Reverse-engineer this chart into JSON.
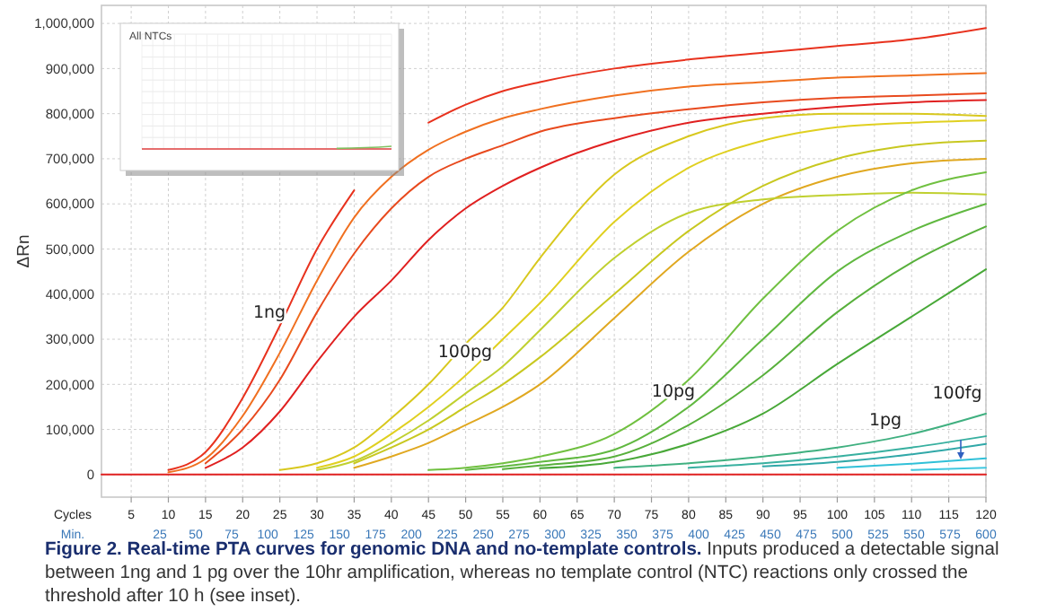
{
  "chart_data": {
    "type": "line",
    "title": "Figure 2. Real-time PTA curves for genomic DNA and no-template controls.",
    "ylabel": "ΔRn",
    "xlabel": "Cycles",
    "x2label": "Min.",
    "annotations": [
      "Inputs produced a detectable signal between 1ng and 1 pg over the 10hr amplification, whereas no template control (NTC) reactions only crossed the threshold after 10 h (see inset).",
      "1ng",
      "100pg",
      "10pg",
      "1pg",
      "100fg",
      "All NTCs"
    ],
    "xlim": [
      1,
      120
    ],
    "xticks": [
      5,
      10,
      15,
      20,
      25,
      30,
      35,
      40,
      45,
      50,
      55,
      60,
      65,
      70,
      75,
      80,
      85,
      90,
      95,
      100,
      105,
      110,
      115,
      120
    ],
    "x2lim": [
      5,
      600
    ],
    "x2ticks": [
      25,
      50,
      75,
      100,
      125,
      150,
      175,
      200,
      225,
      250,
      275,
      300,
      325,
      350,
      375,
      400,
      425,
      450,
      475,
      500,
      525,
      550,
      575,
      600
    ],
    "ylim": [
      -50000,
      1040000
    ],
    "yticks": [
      {
        "value": 0,
        "label": "0"
      },
      {
        "value": 100000,
        "label": "100,000"
      },
      {
        "value": 200000,
        "label": "200,000"
      },
      {
        "value": 300000,
        "label": "300,000"
      },
      {
        "value": 400000,
        "label": "400,000"
      },
      {
        "value": 500000,
        "label": "500,000"
      },
      {
        "value": 600000,
        "label": "600,000"
      },
      {
        "value": 700000,
        "label": "700,000"
      },
      {
        "value": 800000,
        "label": "800,000"
      },
      {
        "value": 900000,
        "label": "900,000"
      },
      {
        "value": 1000000,
        "label": "1,000,000"
      }
    ],
    "grid": true,
    "marker": "none",
    "line_style": "solid",
    "x": [
      1,
      5,
      10,
      15,
      20,
      25,
      30,
      35,
      40,
      45,
      50,
      55,
      60,
      70,
      80,
      90,
      100,
      110,
      120
    ],
    "series": [
      {
        "color": "#e8321e",
        "values": [
          null,
          null,
          10000,
          50000,
          170000,
          330000,
          500000,
          630000,
          null,
          780000,
          820000,
          850000,
          870000,
          900000,
          920000,
          935000,
          950000,
          965000,
          990000
        ]
      },
      {
        "color": "#f07020",
        "values": [
          null,
          null,
          5000,
          35000,
          130000,
          270000,
          430000,
          570000,
          660000,
          720000,
          760000,
          790000,
          810000,
          840000,
          860000,
          870000,
          880000,
          885000,
          890000
        ]
      },
      {
        "color": "#e84a1e",
        "values": [
          null,
          null,
          null,
          25000,
          100000,
          210000,
          360000,
          490000,
          590000,
          660000,
          700000,
          730000,
          760000,
          790000,
          810000,
          825000,
          835000,
          840000,
          845000
        ]
      },
      {
        "color": "#e02020",
        "values": [
          null,
          null,
          null,
          15000,
          60000,
          140000,
          250000,
          350000,
          430000,
          520000,
          590000,
          640000,
          680000,
          740000,
          780000,
          800000,
          815000,
          825000,
          830000
        ]
      },
      {
        "color": "#d8c81e",
        "values": [
          null,
          null,
          null,
          null,
          null,
          10000,
          25000,
          60000,
          125000,
          200000,
          290000,
          370000,
          480000,
          665000,
          750000,
          790000,
          800000,
          800000,
          795000
        ]
      },
      {
        "color": "#e0d020",
        "values": [
          null,
          null,
          null,
          null,
          null,
          null,
          15000,
          40000,
          90000,
          150000,
          220000,
          300000,
          380000,
          560000,
          680000,
          740000,
          770000,
          780000,
          785000
        ]
      },
      {
        "color": "#c8c820",
        "values": [
          null,
          null,
          null,
          null,
          null,
          null,
          null,
          25000,
          60000,
          100000,
          150000,
          200000,
          260000,
          400000,
          540000,
          640000,
          700000,
          730000,
          740000
        ]
      },
      {
        "color": "#e0a820",
        "values": [
          null,
          null,
          null,
          null,
          null,
          null,
          null,
          15000,
          40000,
          70000,
          110000,
          150000,
          200000,
          347000,
          494000,
          600000,
          660000,
          690000,
          700000
        ]
      },
      {
        "color": "#c0d030",
        "values": [
          null,
          null,
          null,
          null,
          null,
          null,
          10000,
          30000,
          70000,
          120000,
          180000,
          240000,
          320000,
          480000,
          580000,
          610000,
          620000,
          625000,
          621000
        ]
      },
      {
        "color": "#70c040",
        "values": [
          null,
          null,
          null,
          null,
          null,
          null,
          null,
          null,
          null,
          10000,
          15000,
          25000,
          40000,
          90000,
          210000,
          390000,
          540000,
          630000,
          670000
        ]
      },
      {
        "color": "#60b840",
        "values": [
          null,
          null,
          null,
          null,
          null,
          null,
          null,
          null,
          null,
          null,
          10000,
          18000,
          28000,
          55000,
          150000,
          300000,
          450000,
          540000,
          600000
        ]
      },
      {
        "color": "#58b03c",
        "values": [
          null,
          null,
          null,
          null,
          null,
          null,
          null,
          null,
          null,
          null,
          null,
          12000,
          20000,
          40000,
          110000,
          220000,
          360000,
          470000,
          550000
        ]
      },
      {
        "color": "#48a838",
        "values": [
          null,
          null,
          null,
          null,
          null,
          null,
          null,
          null,
          null,
          null,
          null,
          null,
          14000,
          28000,
          68000,
          135000,
          245000,
          350000,
          455000
        ]
      },
      {
        "color": "#40b080",
        "values": [
          null,
          null,
          null,
          null,
          null,
          null,
          null,
          null,
          null,
          null,
          null,
          null,
          null,
          15000,
          25000,
          40000,
          60000,
          90000,
          135000
        ]
      },
      {
        "color": "#38b0a0",
        "values": [
          null,
          null,
          null,
          null,
          null,
          null,
          null,
          null,
          null,
          null,
          null,
          null,
          null,
          null,
          15000,
          25000,
          40000,
          60000,
          85000
        ]
      },
      {
        "color": "#30a8a8",
        "values": [
          null,
          null,
          null,
          null,
          null,
          null,
          null,
          null,
          null,
          null,
          null,
          null,
          null,
          null,
          null,
          18000,
          28000,
          45000,
          68000
        ]
      },
      {
        "color": "#30c0d8",
        "values": [
          null,
          null,
          null,
          null,
          null,
          null,
          null,
          null,
          null,
          null,
          null,
          null,
          null,
          null,
          null,
          null,
          15000,
          24000,
          36000
        ]
      },
      {
        "color": "#40c8e0",
        "values": [
          null,
          null,
          null,
          null,
          null,
          null,
          null,
          null,
          null,
          null,
          null,
          null,
          null,
          null,
          null,
          null,
          null,
          10000,
          15000
        ]
      },
      {
        "color": "#e02020",
        "values": [
          0,
          0,
          0,
          0,
          0,
          0,
          0,
          0,
          0,
          0,
          0,
          0,
          0,
          0,
          0,
          0,
          0,
          0,
          0
        ]
      }
    ]
  }
}
